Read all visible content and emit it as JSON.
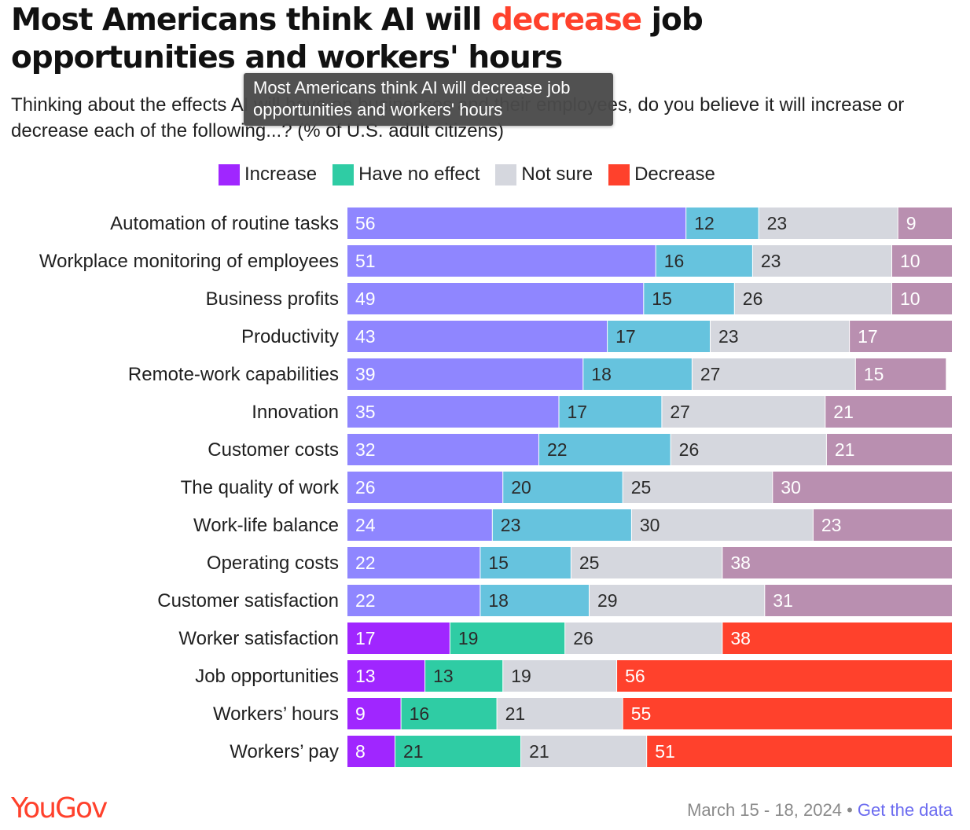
{
  "header": {
    "title_part1": "Most Americans think AI will ",
    "title_accent": "decrease",
    "title_part2": " job opportunities and workers' hours",
    "subtitle": "Thinking about the effects AI will have on businesses and their employees, do you believe it will increase or decrease each of the following...? (% of U.S. adult citizens)"
  },
  "tooltip": {
    "text": "Most Americans think AI will decrease job opportunities and workers' hours"
  },
  "legend": [
    {
      "name": "Increase",
      "color": "#a026ff"
    },
    {
      "name": "Have no effect",
      "color": "#2fcca4"
    },
    {
      "name": "Not sure",
      "color": "#d5d7de"
    },
    {
      "name": "Decrease",
      "color": "#ff412c"
    }
  ],
  "chart_data": {
    "type": "bar",
    "orientation": "horizontal",
    "stacked": true,
    "categories": [
      "Automation of routine tasks",
      "Workplace monitoring of employees",
      "Business profits",
      "Productivity",
      "Remote-work capabilities",
      "Innovation",
      "Customer costs",
      "The quality of work",
      "Work-life balance",
      "Operating costs",
      "Customer satisfaction",
      "Worker satisfaction",
      "Job opportunities",
      "Workers’ hours",
      "Workers’ pay"
    ],
    "series": [
      {
        "name": "Increase",
        "values": [
          56,
          51,
          49,
          43,
          39,
          35,
          32,
          26,
          24,
          22,
          22,
          17,
          13,
          9,
          8
        ]
      },
      {
        "name": "Have no effect",
        "values": [
          12,
          16,
          15,
          17,
          18,
          17,
          22,
          20,
          23,
          15,
          18,
          19,
          13,
          16,
          21
        ]
      },
      {
        "name": "Not sure",
        "values": [
          23,
          23,
          26,
          23,
          27,
          27,
          26,
          25,
          30,
          25,
          29,
          26,
          19,
          21,
          21
        ]
      },
      {
        "name": "Decrease",
        "values": [
          9,
          10,
          10,
          17,
          15,
          21,
          21,
          30,
          23,
          38,
          31,
          38,
          56,
          55,
          51
        ]
      }
    ],
    "highlighted_categories": [
      "Worker satisfaction",
      "Job opportunities",
      "Workers’ hours",
      "Workers’ pay"
    ],
    "colors": {
      "increase": "#a026ff",
      "increase_muted": "#8f86ff",
      "no_effect": "#2fcca4",
      "no_effect_muted": "#66c3de",
      "not_sure": "#d5d7de",
      "decrease": "#ff412c",
      "decrease_muted": "#b98fb0"
    },
    "xlim": [
      0,
      100
    ],
    "legend_position": "top"
  },
  "footer": {
    "logo": "YouGov",
    "date": "March 15 - 18, 2024",
    "separator": " • ",
    "link": "Get the data"
  }
}
